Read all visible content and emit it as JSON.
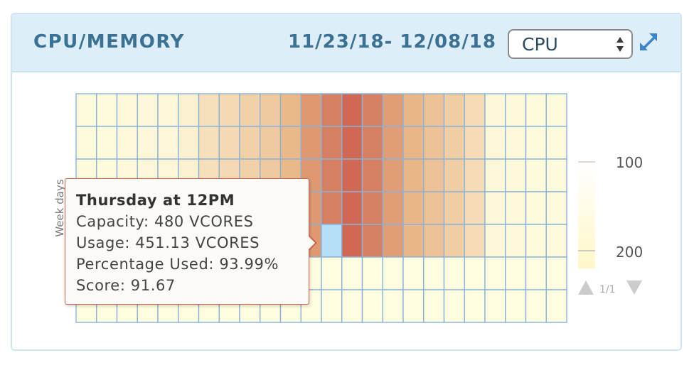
{
  "header": {
    "title": "CPU/MEMORY",
    "date_range": "11/23/18- 12/08/18",
    "metric_select": {
      "selected": "CPU",
      "options": [
        "CPU"
      ]
    },
    "expand_icon": "expand-arrows-icon"
  },
  "chart_data": {
    "type": "heatmap",
    "ylabel": "Week days",
    "columns": 24,
    "rows": 7,
    "row_profile": [
      1,
      1,
      1,
      1,
      1,
      0,
      0
    ],
    "column_intensity": [
      0.02,
      0.02,
      0.03,
      0.04,
      0.05,
      0.08,
      0.2,
      0.24,
      0.3,
      0.35,
      0.46,
      0.64,
      0.78,
      0.9,
      0.78,
      0.62,
      0.48,
      0.4,
      0.32,
      0.22,
      0.04,
      0.03,
      0.02,
      0.02
    ],
    "highlighted_cell": {
      "row": 4,
      "column": 12
    },
    "color_low": "#fffde0",
    "color_mid": "#e8b383",
    "color_high": "#c95748",
    "highlight_color": "#b4dff6",
    "grid_color": "#8ab2d8",
    "legend": {
      "labels": [
        "100",
        "200"
      ],
      "pager_text": "1/1",
      "up_icon": "triangle-up-icon",
      "down_icon": "triangle-down-icon"
    }
  },
  "tooltip": {
    "title": "Thursday at 12PM",
    "capacity": "Capacity: 480 VCORES",
    "usage": "Usage: 451.13 VCORES",
    "percentage": "Percentage Used: 93.99%",
    "score": "Score: 91.67"
  }
}
